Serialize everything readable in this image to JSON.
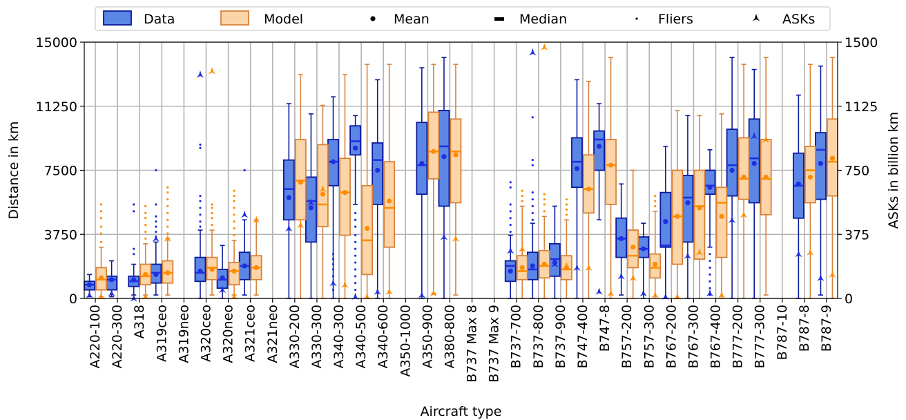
{
  "chart_data": {
    "type": "box",
    "xlabel": "Aircraft type",
    "ylabel": "Distance in km",
    "ylabel_right": "ASKs in billion km",
    "ylim": [
      0,
      15000
    ],
    "ylim_right": [
      0,
      1500
    ],
    "yticks": [
      "0",
      "3750",
      "7500",
      "11250",
      "15000"
    ],
    "yticks_right": [
      "0",
      "375",
      "750",
      "1125",
      "1500"
    ],
    "grid": true,
    "legend_position": "top",
    "legend": [
      {
        "label": "Data",
        "marker": "box-data"
      },
      {
        "label": "Model",
        "marker": "box-model"
      },
      {
        "label": "Mean",
        "marker": "mean"
      },
      {
        "label": "Median",
        "marker": "median"
      },
      {
        "label": "Fliers",
        "marker": "flier"
      },
      {
        "label": "ASKs",
        "marker": "ask"
      }
    ],
    "colors": {
      "data_fill": "#5b86e5",
      "data_edge": "#0a1a9c",
      "data_marker": "#1f2ee0",
      "model_fill": "#fbd5a8",
      "model_edge": "#d9823a",
      "model_marker": "#ff8c00"
    },
    "categories": [
      "A220-100",
      "A220-300",
      "A318",
      "A319ceo",
      "A319neo",
      "A320ceo",
      "A320neo",
      "A321ceo",
      "A321neo",
      "A330-200",
      "A330-300",
      "A340-300",
      "A340-500",
      "A340-600",
      "A350-1000",
      "A350-900",
      "A380-800",
      "B737 Max 8",
      "B737 Max 9",
      "B737-700",
      "B737-800",
      "B737-900",
      "B747-400",
      "B747-8",
      "B757-200",
      "B757-300",
      "B767-200",
      "B767-300",
      "B767-400",
      "B777-200",
      "B777-300",
      "B787-10",
      "B787-8",
      "B787-9"
    ],
    "series": [
      {
        "name": "Data",
        "boxes": [
          {
            "whislo": 100,
            "q1": 500,
            "med": 800,
            "q3": 1000,
            "whishi": 1400,
            "mean": 800,
            "ask": 20,
            "fliers": []
          },
          {
            "whislo": 100,
            "q1": 500,
            "med": 1100,
            "q3": 1300,
            "whishi": 2200,
            "mean": 1100,
            "ask": 30,
            "fliers": []
          },
          {
            "whislo": 200,
            "q1": 700,
            "med": 1000,
            "q3": 1300,
            "whishi": 2000,
            "mean": 1100,
            "ask": 0,
            "fliers": [
              2600,
              2900,
              5100,
              5500
            ]
          },
          {
            "whislo": 200,
            "q1": 900,
            "med": 1500,
            "q3": 2000,
            "whishi": 3300,
            "mean": 1400,
            "ask": 350,
            "fliers": [
              3600,
              3900,
              4200,
              4500,
              4800,
              5500,
              7500
            ]
          },
          null,
          {
            "whislo": 0,
            "q1": 1000,
            "med": 1500,
            "q3": 2400,
            "whishi": 4000,
            "mean": 1600,
            "ask": 1310,
            "fliers": [
              4200,
              4500,
              4900,
              5300,
              5700,
              6000,
              8800,
              9000
            ]
          },
          {
            "whislo": 0,
            "q1": 600,
            "med": 1100,
            "q3": 1700,
            "whishi": 3100,
            "mean": 1200,
            "ask": 50,
            "fliers": []
          },
          {
            "whislo": 200,
            "q1": 1100,
            "med": 1900,
            "q3": 2700,
            "whishi": 4600,
            "mean": 1900,
            "ask": 490,
            "fliers": [
              7500
            ]
          },
          null,
          {
            "whislo": 0,
            "q1": 4600,
            "med": 6400,
            "q3": 8100,
            "whishi": 11400,
            "mean": 5900,
            "ask": 410,
            "fliers": []
          },
          {
            "whislo": 0,
            "q1": 3300,
            "med": 5700,
            "q3": 7100,
            "whishi": 10800,
            "mean": 5300,
            "ask": 560,
            "fliers": []
          },
          {
            "whislo": 0,
            "q1": 6600,
            "med": 8000,
            "q3": 9300,
            "whishi": 11800,
            "mean": 8000,
            "ask": 90,
            "fliers": [
              500,
              900,
              1300,
              1700,
              2000,
              2300,
              2600
            ]
          },
          {
            "whislo": 5500,
            "q1": 8400,
            "med": 9200,
            "q3": 10100,
            "whishi": 10700,
            "mean": 8800,
            "ask": 10,
            "fliers": [
              100,
              500,
              900,
              1300,
              1700,
              2100,
              2500,
              2900,
              3300,
              3700,
              4200,
              4600,
              5000
            ]
          },
          {
            "whislo": 0,
            "q1": 5500,
            "med": 8100,
            "q3": 9100,
            "whishi": 12800,
            "mean": 7500,
            "ask": 40,
            "fliers": []
          },
          null,
          {
            "whislo": 0,
            "q1": 6100,
            "med": 7800,
            "q3": 10300,
            "whishi": 13500,
            "mean": 7900,
            "ask": 20,
            "fliers": []
          },
          {
            "whislo": 0,
            "q1": 5400,
            "med": 8900,
            "q3": 11000,
            "whishi": 14100,
            "mean": 8300,
            "ask": 360,
            "fliers": []
          },
          null,
          null,
          {
            "whislo": 0,
            "q1": 1000,
            "med": 1900,
            "q3": 2200,
            "whishi": 3700,
            "mean": 1600,
            "ask": 280,
            "fliers": [
              3900,
              4300,
              4700,
              5100,
              5500,
              6500,
              6800
            ]
          },
          {
            "whislo": 0,
            "q1": 1100,
            "med": 1700,
            "q3": 2700,
            "whishi": 4400,
            "mean": 1900,
            "ask": 1440,
            "fliers": [
              4600,
              5000,
              5400,
              5800,
              6200,
              7800,
              8100,
              10600
            ]
          },
          {
            "whislo": 0,
            "q1": 1300,
            "med": 2300,
            "q3": 3200,
            "whishi": 5400,
            "mean": 2100,
            "ask": 200,
            "fliers": []
          },
          {
            "whislo": 0,
            "q1": 6500,
            "med": 8000,
            "q3": 9400,
            "whishi": 12800,
            "mean": 7600,
            "ask": 180,
            "fliers": []
          },
          {
            "whislo": 4600,
            "q1": 7500,
            "med": 9300,
            "q3": 9800,
            "whishi": 11400,
            "mean": 8900,
            "ask": 40,
            "fliers": []
          },
          {
            "whislo": 200,
            "q1": 2400,
            "med": 3500,
            "q3": 4700,
            "whishi": 6700,
            "mean": 3500,
            "ask": 130,
            "fliers": []
          },
          {
            "whislo": 0,
            "q1": 2400,
            "med": 2900,
            "q3": 3600,
            "whishi": 4400,
            "mean": 2900,
            "ask": 30,
            "fliers": []
          },
          {
            "whislo": 0,
            "q1": 3000,
            "med": 3100,
            "q3": 6200,
            "whishi": 8900,
            "mean": 4500,
            "ask": 10,
            "fliers": []
          },
          {
            "whislo": 0,
            "q1": 3300,
            "med": 5900,
            "q3": 7200,
            "whishi": 10700,
            "mean": 5600,
            "ask": 250,
            "fliers": []
          },
          {
            "whislo": 3000,
            "q1": 6100,
            "med": 6600,
            "q3": 7500,
            "whishi": 8700,
            "mean": 6500,
            "ask": 30,
            "fliers": [
              200,
              600,
              1000,
              1400,
              1800,
              2200,
              2600
            ]
          },
          {
            "whislo": 0,
            "q1": 6000,
            "med": 7800,
            "q3": 9900,
            "whishi": 14100,
            "mean": 7500,
            "ask": 460,
            "fliers": []
          },
          {
            "whislo": 0,
            "q1": 5600,
            "med": 8200,
            "q3": 10500,
            "whishi": 13400,
            "mean": 7900,
            "ask": 950,
            "fliers": []
          },
          null,
          {
            "whislo": 0,
            "q1": 4700,
            "med": 6600,
            "q3": 8500,
            "whishi": 11900,
            "mean": 6700,
            "ask": 260,
            "fliers": []
          },
          {
            "whislo": 200,
            "q1": 5800,
            "med": 8700,
            "q3": 9700,
            "whishi": 13600,
            "mean": 7900,
            "ask": 120,
            "fliers": []
          }
        ]
      },
      {
        "name": "Model",
        "boxes": [
          {
            "whislo": 100,
            "q1": 500,
            "med": 1100,
            "q3": 1800,
            "whishi": 3000,
            "mean": 1200,
            "ask": 10,
            "fliers": [
              3300,
              3800,
              4200,
              4700,
              5100,
              5500
            ]
          },
          null,
          {
            "whislo": 200,
            "q1": 800,
            "med": 1300,
            "q3": 2000,
            "whishi": 3200,
            "mean": 1400,
            "ask": 10,
            "fliers": [
              3500,
              3900,
              4300,
              4700,
              5000,
              5400
            ]
          },
          {
            "whislo": 200,
            "q1": 900,
            "med": 1500,
            "q3": 2200,
            "whishi": 3500,
            "mean": 1500,
            "ask": 350,
            "fliers": [
              3800,
              4200,
              4600,
              5000,
              5400,
              5800,
              6200,
              6500
            ]
          },
          null,
          {
            "whislo": 200,
            "q1": 1100,
            "med": 1800,
            "q3": 2400,
            "whishi": 4000,
            "mean": 1700,
            "ask": 1330,
            "fliers": [
              4300,
              4700,
              5000,
              5300,
              5500
            ]
          },
          {
            "whislo": 200,
            "q1": 800,
            "med": 1600,
            "q3": 2100,
            "whishi": 3400,
            "mean": 1600,
            "ask": 10,
            "fliers": [
              3700,
              4100,
              4500,
              4900,
              5300,
              5700,
              6000,
              6300
            ]
          },
          {
            "whislo": 200,
            "q1": 1100,
            "med": 1800,
            "q3": 2500,
            "whishi": 4600,
            "mean": 1800,
            "ask": 460,
            "fliers": []
          },
          null,
          {
            "whislo": 0,
            "q1": 4600,
            "med": 6900,
            "q3": 9300,
            "whishi": 13100,
            "mean": 6800,
            "ask": 430,
            "fliers": []
          },
          {
            "whislo": 0,
            "q1": 4200,
            "med": 5500,
            "q3": 9000,
            "whishi": 11300,
            "mean": 6100,
            "ask": 640,
            "fliers": []
          },
          {
            "whislo": 0,
            "q1": 3700,
            "med": 6200,
            "q3": 8200,
            "whishi": 13100,
            "mean": 6200,
            "ask": 80,
            "fliers": []
          },
          {
            "whislo": 0,
            "q1": 1400,
            "med": 3400,
            "q3": 6600,
            "whishi": 13700,
            "mean": 4100,
            "ask": 10,
            "fliers": []
          },
          {
            "whislo": 0,
            "q1": 3000,
            "med": 5300,
            "q3": 8000,
            "whishi": 13700,
            "mean": 5700,
            "ask": 40,
            "fliers": []
          },
          null,
          {
            "whislo": 300,
            "q1": 7000,
            "med": 8600,
            "q3": 10900,
            "whishi": 13700,
            "mean": 8600,
            "ask": 30,
            "fliers": []
          },
          {
            "whislo": 200,
            "q1": 5600,
            "med": 8600,
            "q3": 10500,
            "whishi": 13700,
            "mean": 8400,
            "ask": 350,
            "fliers": []
          },
          null,
          null,
          {
            "whislo": 0,
            "q1": 1100,
            "med": 1600,
            "q3": 2500,
            "whishi": 5400,
            "mean": 1800,
            "ask": 290,
            "fliers": [
              5700,
              6000,
              6300
            ]
          },
          {
            "whislo": 0,
            "q1": 1200,
            "med": 1900,
            "q3": 2800,
            "whishi": 4800,
            "mean": 2000,
            "ask": 1470,
            "fliers": [
              5100,
              5500,
              5800,
              6100
            ]
          },
          {
            "whislo": 0,
            "q1": 1100,
            "med": 1700,
            "q3": 2500,
            "whishi": 4600,
            "mean": 1800,
            "ask": 190,
            "fliers": [
              4900,
              5200,
              5500,
              5800
            ]
          },
          {
            "whislo": 0,
            "q1": 5000,
            "med": 6400,
            "q3": 8400,
            "whishi": 12700,
            "mean": 6400,
            "ask": 180,
            "fliers": []
          },
          {
            "whislo": 0,
            "q1": 5500,
            "med": 7800,
            "q3": 9300,
            "whishi": 14100,
            "mean": 7800,
            "ask": 30,
            "fliers": []
          },
          {
            "whislo": 0,
            "q1": 1800,
            "med": 2500,
            "q3": 4000,
            "whishi": 7500,
            "mean": 3000,
            "ask": 120,
            "fliers": []
          },
          {
            "whislo": 0,
            "q1": 1200,
            "med": 1800,
            "q3": 2600,
            "whishi": 5100,
            "mean": 2000,
            "ask": 20,
            "fliers": [
              5400,
              5700,
              6000
            ]
          },
          {
            "whislo": 0,
            "q1": 2000,
            "med": 4800,
            "q3": 7500,
            "whishi": 11000,
            "mean": 4800,
            "ask": 10,
            "fliers": []
          },
          {
            "whislo": 0,
            "q1": 2300,
            "med": 5400,
            "q3": 7500,
            "whishi": 10700,
            "mean": 5300,
            "ask": 270,
            "fliers": []
          },
          {
            "whislo": 0,
            "q1": 2400,
            "med": 5600,
            "q3": 6500,
            "whishi": 10800,
            "mean": 4800,
            "ask": 20,
            "fliers": []
          },
          {
            "whislo": 0,
            "q1": 5800,
            "med": 7000,
            "q3": 9400,
            "whishi": 13700,
            "mean": 7100,
            "ask": 490,
            "fliers": []
          },
          {
            "whislo": 200,
            "q1": 4900,
            "med": 7000,
            "q3": 9300,
            "whishi": 14100,
            "mean": 7100,
            "ask": 930,
            "fliers": []
          },
          null,
          {
            "whislo": 0,
            "q1": 5600,
            "med": 7500,
            "q3": 8900,
            "whishi": 13700,
            "mean": 7100,
            "ask": 270,
            "fliers": []
          },
          {
            "whislo": 0,
            "q1": 6000,
            "med": 8000,
            "q3": 10500,
            "whishi": 14100,
            "mean": 8200,
            "ask": 140,
            "fliers": []
          }
        ]
      }
    ]
  }
}
